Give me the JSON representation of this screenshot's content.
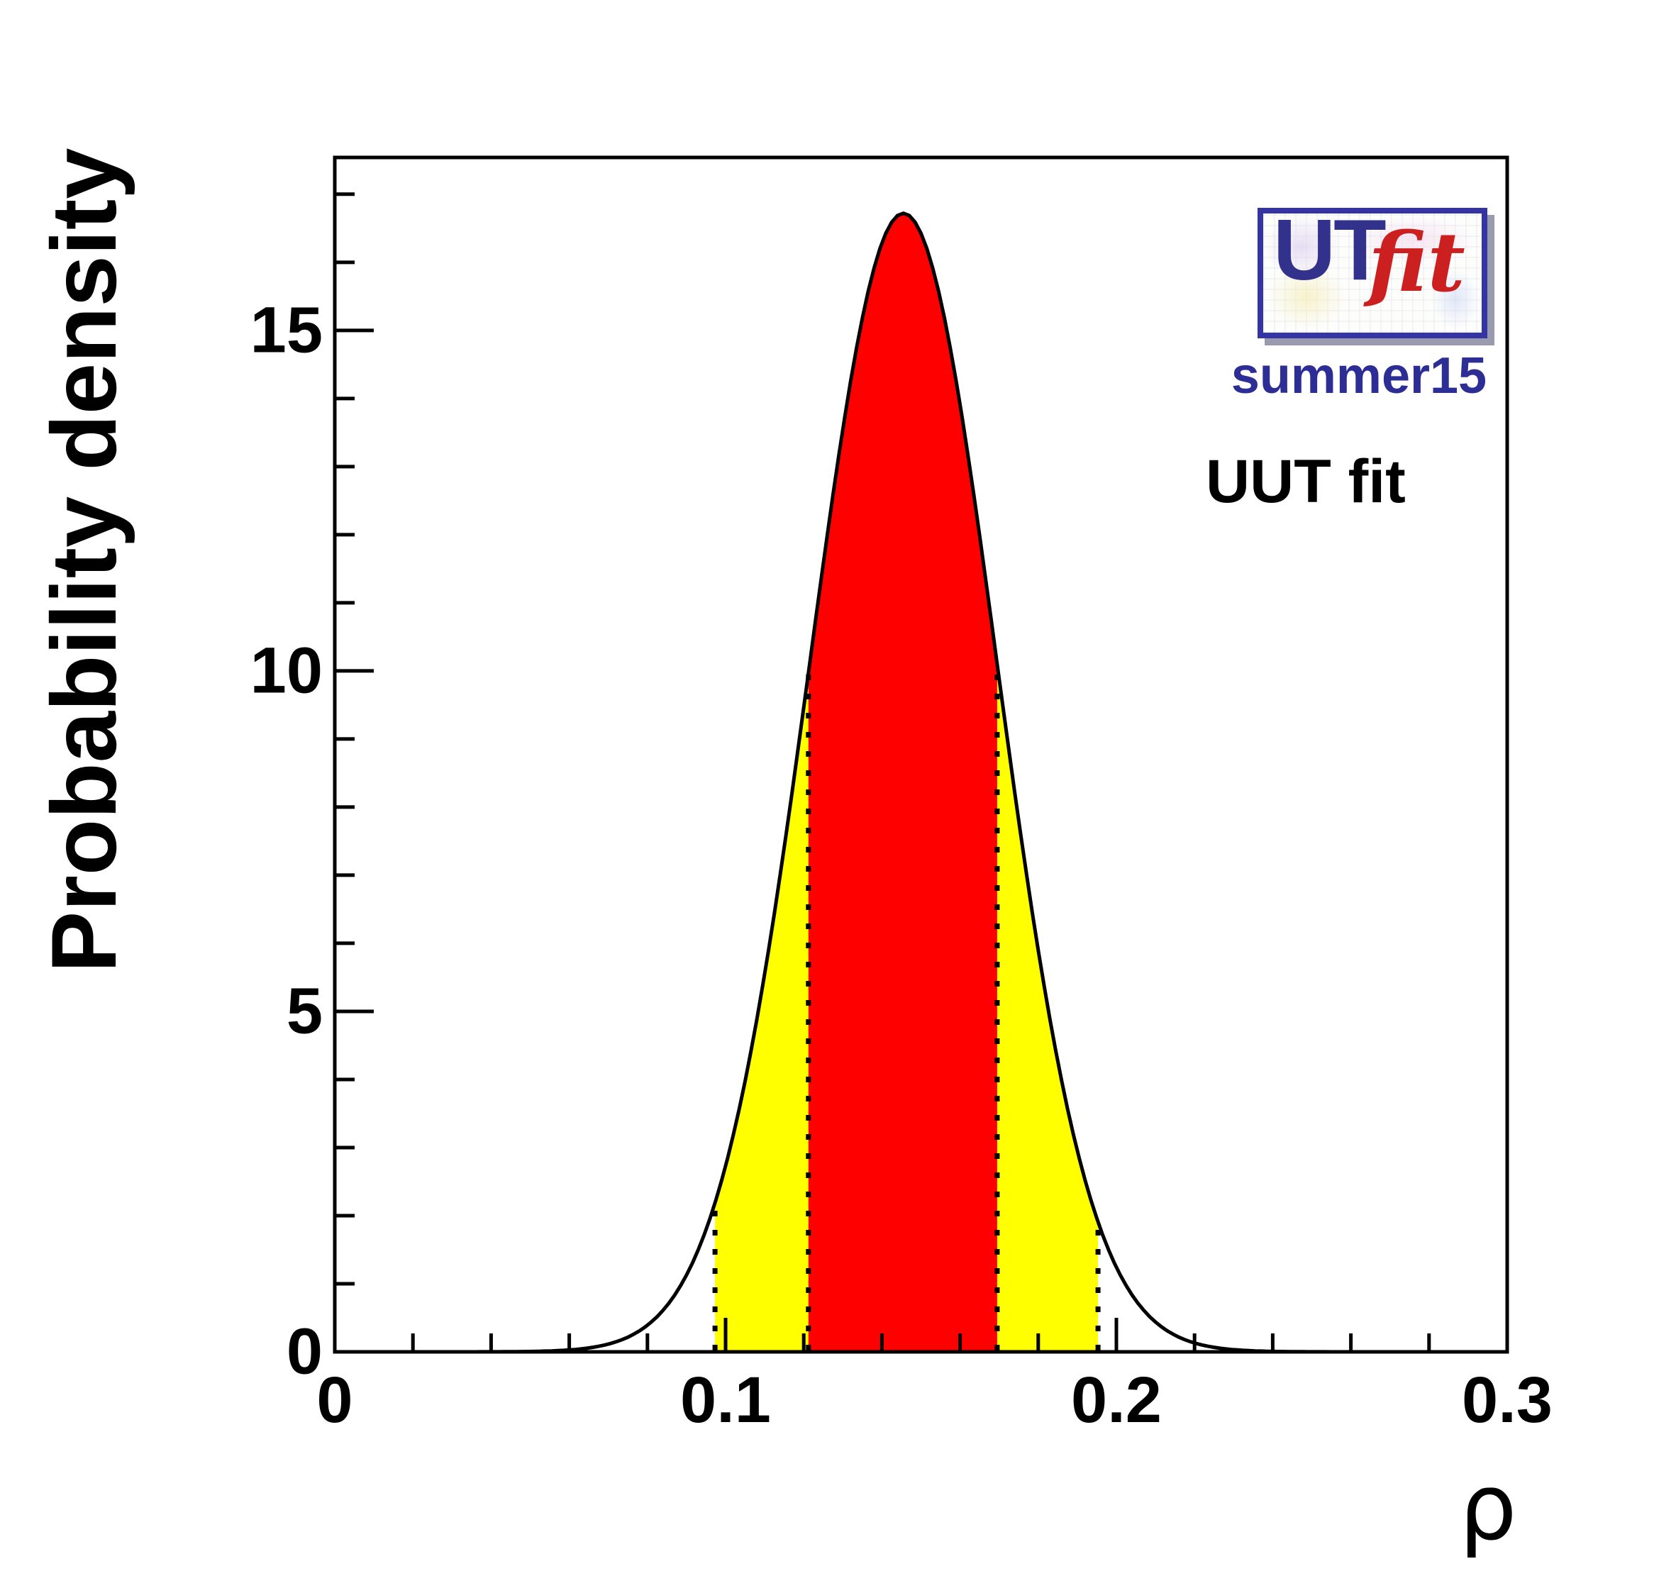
{
  "chart_data": {
    "type": "area",
    "title": "",
    "xlabel": "ρ",
    "ylabel": "Probability density",
    "xlim": [
      0,
      0.3
    ],
    "ylim": [
      0,
      17.54
    ],
    "grid": false,
    "x_axis": {
      "tick_values": [
        0,
        0.1,
        0.2,
        0.3
      ],
      "tick_labels": [
        "0",
        "0.1",
        "0.2",
        "0.3"
      ],
      "minor_step": 0.02
    },
    "y_axis": {
      "tick_values": [
        0,
        5,
        10,
        15
      ],
      "tick_labels": [
        "0",
        "5",
        "10",
        "15"
      ],
      "minor_step": 1
    },
    "distribution": {
      "shape": "gaussian",
      "mean": 0.1455,
      "sigma": 0.0239,
      "peak_density": 16.72
    },
    "intervals": {
      "ci68": {
        "range": [
          0.1212,
          0.1695
        ],
        "color": "#ff0000"
      },
      "ci95": {
        "range": [
          0.0973,
          0.1953
        ],
        "color": "#ffff00"
      }
    },
    "curve_color": "#000000",
    "samples": {
      "x": [
        0.06,
        0.07,
        0.08,
        0.09,
        0.1,
        0.11,
        0.12,
        0.13,
        0.14,
        0.145,
        0.15,
        0.16,
        0.17,
        0.18,
        0.19,
        0.2,
        0.21,
        0.22,
        0.23,
        0.24
      ],
      "y": [
        0.03,
        0.12,
        0.41,
        1.17,
        2.8,
        5.65,
        9.59,
        13.66,
        16.33,
        16.72,
        16.39,
        13.8,
        9.76,
        5.79,
        2.89,
        1.21,
        0.42,
        0.13,
        0.03,
        0.01
      ]
    }
  },
  "branding": {
    "logo_ut": "UT",
    "logo_fit": "fit",
    "version": "summer15",
    "navy": "#2d2d96",
    "logo_red": "#cc2020",
    "logo_border": "#3434a4"
  },
  "annotations": {
    "fit_label": "UUT fit"
  }
}
